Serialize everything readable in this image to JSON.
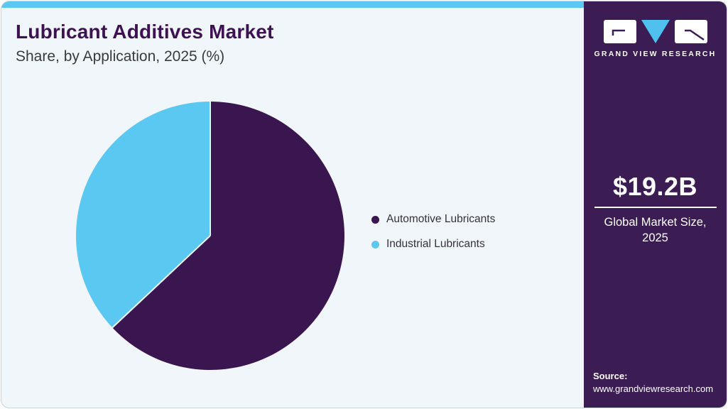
{
  "header": {
    "title": "Lubricant Additives Market",
    "subtitle": "Share, by Application, 2025 (%)"
  },
  "chart_data": {
    "type": "pie",
    "title": "Lubricant Additives Market Share, by Application, 2025 (%)",
    "categories": [
      "Automotive Lubricants",
      "Industrial Lubricants"
    ],
    "values": [
      63,
      37
    ],
    "colors": [
      "#39164f",
      "#5bc8f2"
    ],
    "start_angle_deg": 0,
    "direction": "clockwise",
    "legend_position": "right",
    "separator_color": "#f0f6fa"
  },
  "sidebar": {
    "brand": "GRAND VIEW RESEARCH",
    "market_size": "$19.2B",
    "market_label_lines": [
      "Global Market Size,",
      "2025"
    ],
    "source_label": "Source:",
    "source_url": "www.grandviewresearch.com"
  },
  "theme": {
    "card_background": "#f0f6fa",
    "card_border": "#c9d4dc",
    "accent_blue": "#5bc8f2",
    "brand_purple": "#3b1d54",
    "pie_purple": "#39164f",
    "title_color": "#3e1153"
  }
}
